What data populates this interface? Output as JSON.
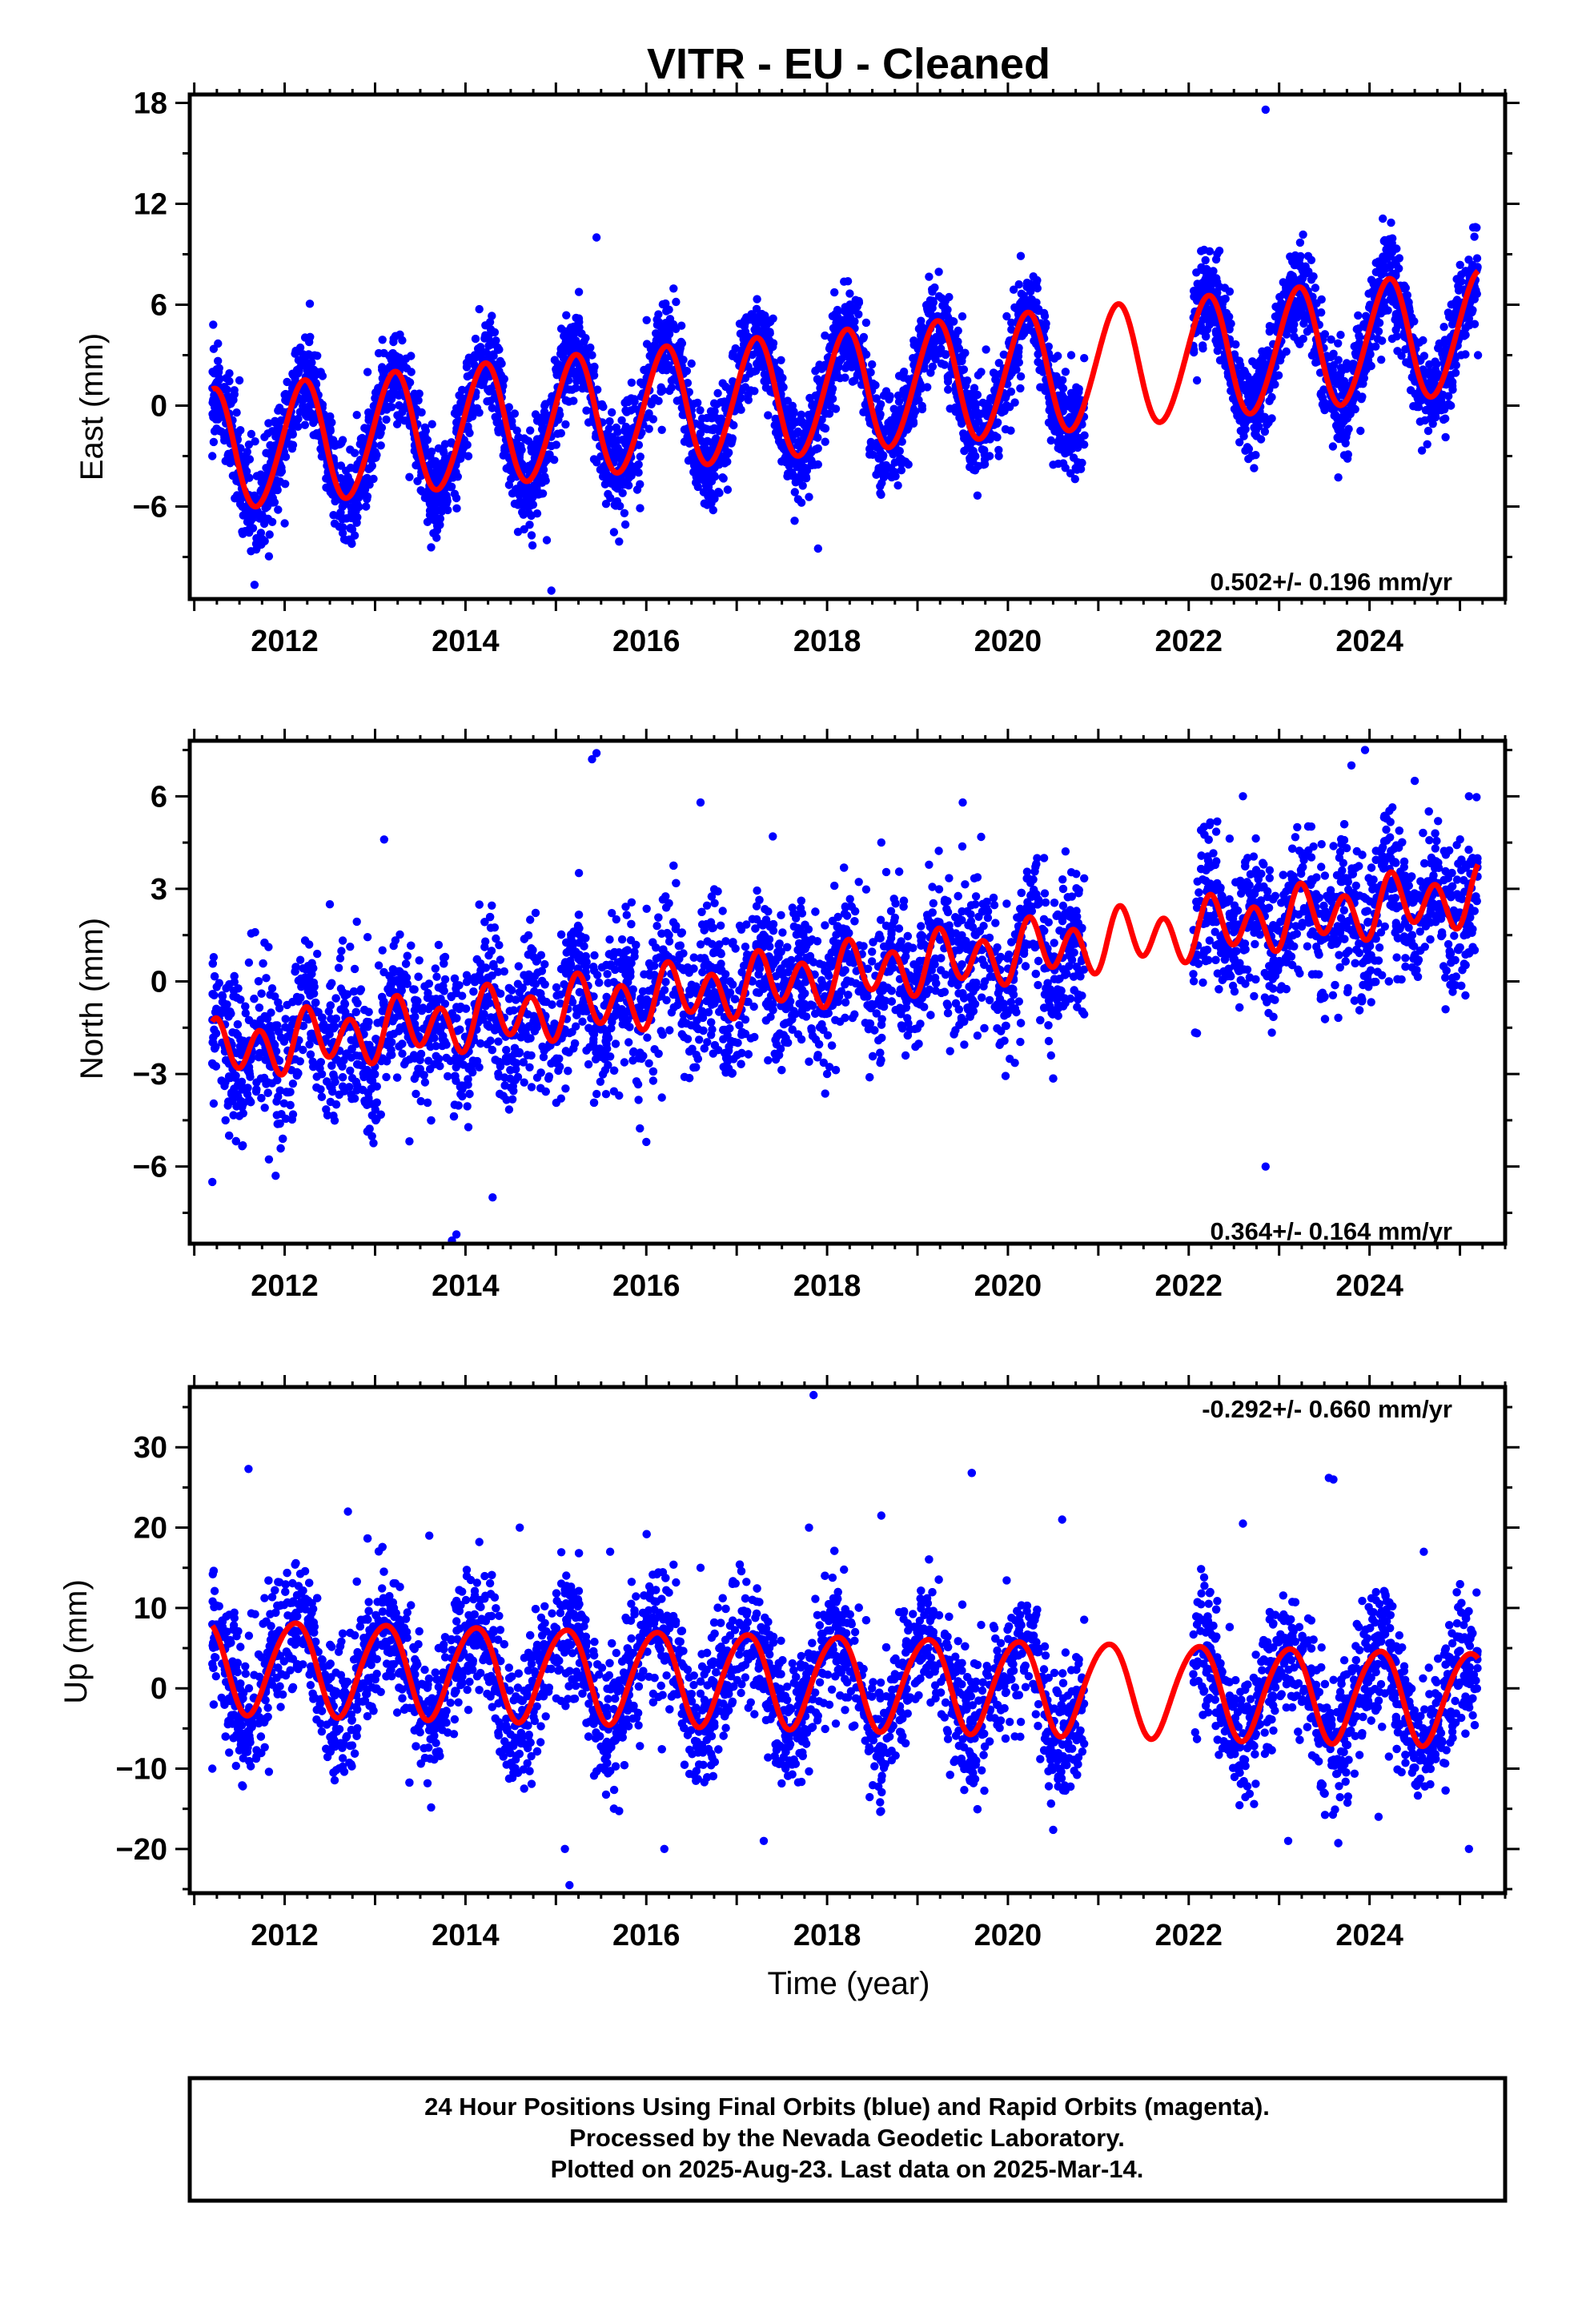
{
  "figure": {
    "title": "VITR  - EU - Cleaned",
    "xlabel": "Time (year)",
    "footer": {
      "line1": "24 Hour Positions Using Final Orbits (blue) and Rapid Orbits (magenta).",
      "line2": "Processed by the Nevada Geodetic Laboratory.",
      "line3": "Plotted on 2025-Aug-23. Last data on 2025-Mar-14."
    }
  },
  "colors": {
    "points": "#0000ff",
    "fit": "#ff0000",
    "frame": "#000000"
  },
  "chart_data": [
    {
      "type": "scatter",
      "title": "VITR  - EU - Cleaned",
      "ylabel": "East (mm)",
      "xlim": [
        2010.95,
        2025.5
      ],
      "ylim": [
        -11.5,
        18.5
      ],
      "xticks": [
        2012,
        2014,
        2016,
        2018,
        2020,
        2022,
        2024
      ],
      "yticks": [
        -6,
        0,
        6,
        12,
        18
      ],
      "rate": "0.502+/- 0.196 mm/yr",
      "rate_position": "bottom-right",
      "series": [
        {
          "role": "data",
          "x": [
            2011.2,
            2011.5,
            2011.8,
            2012.0,
            2012.4,
            2012.9,
            2013.4,
            2013.9,
            2014.4,
            2014.9,
            2015.4,
            2015.9,
            2016.5,
            2016.9,
            2017.4,
            2017.9,
            2018.4,
            2018.9,
            2019.4,
            2019.9,
            2020.4,
            2020.7,
            2022.4,
            2022.8,
            2023.4,
            2023.9,
            2024.4,
            2024.9,
            2025.2,
            2015.45,
            2022.85,
            2014.95,
            2017.9
          ],
          "y": [
            -3,
            1.5,
            -5,
            -7,
            2,
            -6,
            2,
            -5.5,
            2.5,
            -8,
            3,
            -5,
            2.5,
            -5,
            3.5,
            -3.5,
            4,
            -3.5,
            5,
            -3,
            5.5,
            3,
            7,
            -2,
            7,
            -1.5,
            7,
            0,
            3,
            10,
            17.6,
            -11,
            -8.5
          ],
          "n_points": 5200,
          "color": "#0000ff"
        },
        {
          "role": "fit",
          "t0": 2011.2,
          "t1": 2025.2,
          "intercept": -2.7,
          "slope": 0.502,
          "annual_amp": 3.6,
          "annual_phase": 1.55,
          "semiannual_amp": 0.25,
          "semiannual_phase": 0.3,
          "color": "#ff0000"
        }
      ],
      "scatter_noise": 1.4,
      "gaps": [
        [
          2020.85,
          2022.05
        ]
      ]
    },
    {
      "type": "scatter",
      "title": "",
      "ylabel": "North (mm)",
      "xlim": [
        2010.95,
        2025.5
      ],
      "ylim": [
        -8.5,
        7.8
      ],
      "xticks": [
        2012,
        2014,
        2016,
        2018,
        2020,
        2022,
        2024
      ],
      "yticks": [
        -6,
        -3,
        0,
        3,
        6
      ],
      "rate": "0.364+/- 0.164 mm/yr",
      "rate_position": "bottom-right",
      "series": [
        {
          "role": "data",
          "x": [
            2011.2,
            2011.9,
            2012.5,
            2013.1,
            2013.9,
            2014.3,
            2015.4,
            2016.0,
            2016.6,
            2017.4,
            2018.0,
            2018.6,
            2019.5,
            2020.4,
            2022.6,
            2023.2,
            2023.8,
            2024.5,
            2025.1,
            2013.85,
            2015.45,
            2022.85,
            2023.95
          ],
          "y": [
            -6.5,
            -6.3,
            2.5,
            4.6,
            -8.2,
            -7,
            7.2,
            -5.2,
            5.8,
            4.7,
            -3,
            4.5,
            5.8,
            4,
            6,
            5,
            7,
            6.5,
            6,
            -8.4,
            7.4,
            -6,
            7.5
          ],
          "n_points": 5000,
          "color": "#0000ff"
        },
        {
          "role": "fit",
          "t0": 2011.2,
          "t1": 2025.2,
          "intercept": -2.3,
          "slope": 0.364,
          "annual_amp": 0.35,
          "annual_phase": 0.8,
          "semiannual_amp": 0.8,
          "semiannual_phase": 1.2,
          "color": "#ff0000"
        }
      ],
      "scatter_noise": 1.2,
      "gaps": [
        [
          2020.85,
          2022.05
        ]
      ]
    },
    {
      "type": "scatter",
      "title": "",
      "ylabel": "Up (mm)",
      "xlabel": "Time (year)",
      "xlim": [
        2010.95,
        2025.5
      ],
      "ylim": [
        -25.5,
        37.5
      ],
      "xticks": [
        2012,
        2014,
        2016,
        2018,
        2020,
        2022,
        2024
      ],
      "yticks": [
        -20,
        -10,
        0,
        10,
        20,
        30
      ],
      "rate": "-0.292+/- 0.660 mm/yr",
      "rate_position": "top-right",
      "series": [
        {
          "role": "data",
          "x": [
            2011.2,
            2011.6,
            2012.7,
            2013.6,
            2014.6,
            2015.1,
            2015.6,
            2016.2,
            2016.6,
            2017.3,
            2017.8,
            2018.6,
            2019.6,
            2020.6,
            2022.6,
            2023.1,
            2023.6,
            2024.1,
            2024.6,
            2025.1,
            2017.85,
            2015.15,
            2019.6,
            2023.55
          ],
          "y": [
            -10,
            27.3,
            22,
            19,
            20,
            -20,
            17,
            -20,
            15,
            -19,
            20,
            21.5,
            26.8,
            21,
            20.5,
            -19,
            26,
            -16,
            17,
            -20,
            36.5,
            -24.5,
            26.8,
            26.2
          ],
          "n_points": 5200,
          "color": "#0000ff"
        },
        {
          "role": "fit",
          "t0": 2011.2,
          "t1": 2025.2,
          "intercept": 2.9,
          "slope": -0.292,
          "annual_amp": 5.8,
          "annual_phase": 2.2,
          "semiannual_amp": 0.5,
          "semiannual_phase": 0.4,
          "color": "#ff0000"
        }
      ],
      "scatter_noise": 4.2,
      "gaps": [
        [
          2020.85,
          2022.05
        ]
      ]
    }
  ]
}
